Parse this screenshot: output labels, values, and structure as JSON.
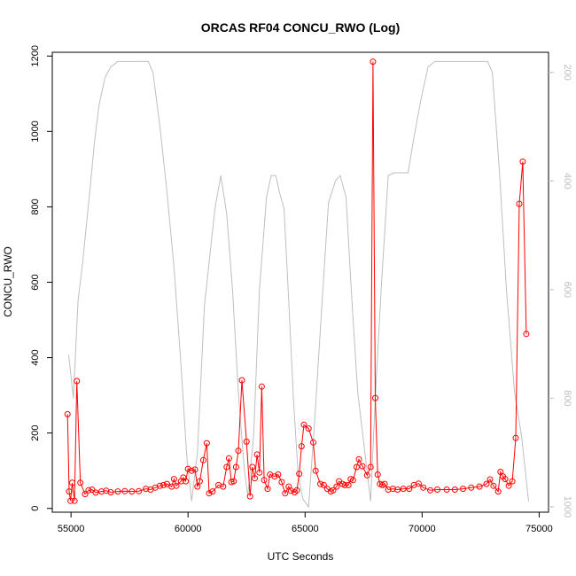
{
  "chart_data": {
    "type": "line",
    "title": "ORCAS RF04 CONCU_RWO (Log)",
    "xlabel": "UTC Seconds",
    "ylabel": "CONCU_RWO",
    "xlim": [
      54200,
      75400
    ],
    "ylim": [
      -10,
      1210
    ],
    "x_ticks": [
      55000,
      60000,
      65000,
      70000,
      75000
    ],
    "y_ticks": [
      0,
      200,
      400,
      600,
      800,
      1000,
      1200
    ],
    "y2_ticks": [
      200,
      400,
      600,
      800,
      1000
    ],
    "y2lim": [
      1010,
      163
    ],
    "y2_reversed": true,
    "grid": false,
    "colors": {
      "series": "#ff0000",
      "secondary": "#bebebe",
      "axis": "#000000"
    },
    "series": [
      {
        "axis": "left",
        "style": "line+points",
        "color": "#ff0000",
        "points": [
          [
            54850,
            250
          ],
          [
            54920,
            45
          ],
          [
            54980,
            20
          ],
          [
            55050,
            68
          ],
          [
            55150,
            20
          ],
          [
            55250,
            338
          ],
          [
            55400,
            68
          ],
          [
            55600,
            38
          ],
          [
            55750,
            48
          ],
          [
            55900,
            50
          ],
          [
            56050,
            42
          ],
          [
            56300,
            45
          ],
          [
            56500,
            47
          ],
          [
            56700,
            43
          ],
          [
            57000,
            45
          ],
          [
            57300,
            46
          ],
          [
            57600,
            45
          ],
          [
            57900,
            46
          ],
          [
            58200,
            52
          ],
          [
            58400,
            50
          ],
          [
            58600,
            55
          ],
          [
            58800,
            60
          ],
          [
            58950,
            62
          ],
          [
            59100,
            65
          ],
          [
            59300,
            58
          ],
          [
            59400,
            78
          ],
          [
            59500,
            60
          ],
          [
            59700,
            72
          ],
          [
            59800,
            82
          ],
          [
            59900,
            72
          ],
          [
            60000,
            105
          ],
          [
            60150,
            100
          ],
          [
            60300,
            103
          ],
          [
            60400,
            58
          ],
          [
            60500,
            72
          ],
          [
            60650,
            128
          ],
          [
            60800,
            173
          ],
          [
            60900,
            40
          ],
          [
            61050,
            45
          ],
          [
            61300,
            62
          ],
          [
            61500,
            58
          ],
          [
            61650,
            110
          ],
          [
            61750,
            133
          ],
          [
            61850,
            70
          ],
          [
            61950,
            72
          ],
          [
            62050,
            110
          ],
          [
            62150,
            153
          ],
          [
            62300,
            340
          ],
          [
            62500,
            177
          ],
          [
            62650,
            32
          ],
          [
            62750,
            110
          ],
          [
            62850,
            80
          ],
          [
            62950,
            143
          ],
          [
            63050,
            95
          ],
          [
            63150,
            323
          ],
          [
            63250,
            75
          ],
          [
            63400,
            52
          ],
          [
            63500,
            90
          ],
          [
            63700,
            85
          ],
          [
            63850,
            90
          ],
          [
            64000,
            70
          ],
          [
            64150,
            40
          ],
          [
            64300,
            58
          ],
          [
            64400,
            47
          ],
          [
            64550,
            43
          ],
          [
            64650,
            48
          ],
          [
            64750,
            92
          ],
          [
            64850,
            165
          ],
          [
            64950,
            222
          ],
          [
            65150,
            212
          ],
          [
            65350,
            175
          ],
          [
            65450,
            100
          ],
          [
            65650,
            65
          ],
          [
            65800,
            62
          ],
          [
            65950,
            52
          ],
          [
            66100,
            45
          ],
          [
            66200,
            48
          ],
          [
            66350,
            58
          ],
          [
            66450,
            72
          ],
          [
            66600,
            65
          ],
          [
            66700,
            62
          ],
          [
            66850,
            62
          ],
          [
            66950,
            78
          ],
          [
            67050,
            75
          ],
          [
            67200,
            110
          ],
          [
            67300,
            130
          ],
          [
            67450,
            112
          ],
          [
            67650,
            88
          ],
          [
            67800,
            110
          ],
          [
            67900,
            1185
          ],
          [
            68000,
            293
          ],
          [
            68100,
            90
          ],
          [
            68200,
            65
          ],
          [
            68300,
            62
          ],
          [
            68400,
            65
          ],
          [
            68550,
            50
          ],
          [
            68750,
            52
          ],
          [
            68950,
            50
          ],
          [
            69200,
            52
          ],
          [
            69450,
            52
          ],
          [
            69650,
            62
          ],
          [
            69850,
            66
          ],
          [
            70050,
            55
          ],
          [
            70350,
            48
          ],
          [
            70650,
            50
          ],
          [
            71050,
            50
          ],
          [
            71400,
            50
          ],
          [
            71750,
            52
          ],
          [
            72100,
            55
          ],
          [
            72450,
            58
          ],
          [
            72750,
            65
          ],
          [
            72900,
            77
          ],
          [
            73050,
            60
          ],
          [
            73250,
            45
          ],
          [
            73350,
            97
          ],
          [
            73450,
            85
          ],
          [
            73550,
            78
          ],
          [
            73700,
            60
          ],
          [
            73850,
            72
          ],
          [
            74000,
            187
          ],
          [
            74150,
            808
          ],
          [
            74300,
            920
          ],
          [
            74450,
            463
          ]
        ]
      },
      {
        "axis": "right",
        "style": "line",
        "color": "#bebebe",
        "points": [
          [
            54900,
            720
          ],
          [
            55100,
            800
          ],
          [
            55300,
            620
          ],
          [
            55500,
            550
          ],
          [
            55800,
            420
          ],
          [
            56000,
            330
          ],
          [
            56200,
            260
          ],
          [
            56450,
            210
          ],
          [
            56700,
            190
          ],
          [
            57000,
            180
          ],
          [
            57300,
            180
          ],
          [
            57800,
            180
          ],
          [
            58300,
            180
          ],
          [
            58500,
            200
          ],
          [
            58800,
            300
          ],
          [
            59100,
            420
          ],
          [
            59400,
            560
          ],
          [
            59700,
            740
          ],
          [
            59950,
            910
          ],
          [
            60150,
            990
          ],
          [
            60400,
            900
          ],
          [
            60700,
            630
          ],
          [
            60950,
            530
          ],
          [
            61150,
            450
          ],
          [
            61400,
            390
          ],
          [
            61650,
            460
          ],
          [
            61900,
            600
          ],
          [
            62150,
            790
          ],
          [
            62400,
            930
          ],
          [
            62550,
            980
          ],
          [
            62800,
            870
          ],
          [
            63050,
            600
          ],
          [
            63350,
            430
          ],
          [
            63550,
            390
          ],
          [
            63750,
            390
          ],
          [
            63900,
            420
          ],
          [
            64100,
            450
          ],
          [
            64300,
            620
          ],
          [
            64500,
            800
          ],
          [
            64700,
            940
          ],
          [
            64900,
            985
          ],
          [
            65150,
            1000
          ],
          [
            65400,
            850
          ],
          [
            65700,
            640
          ],
          [
            66000,
            440
          ],
          [
            66300,
            400
          ],
          [
            66500,
            390
          ],
          [
            66750,
            430
          ],
          [
            67000,
            620
          ],
          [
            67250,
            790
          ],
          [
            67500,
            880
          ],
          [
            67800,
            990
          ],
          [
            68000,
            800
          ],
          [
            68250,
            600
          ],
          [
            68550,
            390
          ],
          [
            68800,
            385
          ],
          [
            69150,
            385
          ],
          [
            69400,
            385
          ],
          [
            69650,
            320
          ],
          [
            69950,
            250
          ],
          [
            70250,
            190
          ],
          [
            70550,
            180
          ],
          [
            71000,
            180
          ],
          [
            71500,
            180
          ],
          [
            72000,
            180
          ],
          [
            72500,
            180
          ],
          [
            72800,
            180
          ],
          [
            73000,
            200
          ],
          [
            73300,
            380
          ],
          [
            73600,
            600
          ],
          [
            73950,
            790
          ],
          [
            74250,
            870
          ],
          [
            74550,
            990
          ]
        ]
      }
    ]
  }
}
